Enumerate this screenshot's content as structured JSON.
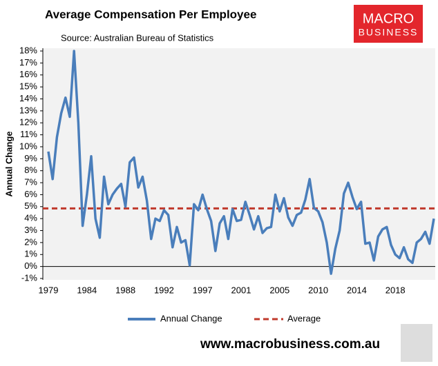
{
  "chart_data": {
    "type": "line",
    "title": "Average Compensation Per Employee",
    "subtitle": "Source: Australian Bureau of Statistics",
    "y_label": "Annual Change",
    "logo": {
      "line1": "MACRO",
      "line2": "BUSINESS"
    },
    "footer": "www.macrobusiness.com.au",
    "categories": [
      "1979",
      null,
      null,
      null,
      null,
      null,
      null,
      null,
      null,
      "1984",
      null,
      null,
      null,
      null,
      null,
      null,
      null,
      null,
      "1988",
      null,
      null,
      null,
      null,
      null,
      null,
      null,
      null,
      "1992",
      null,
      null,
      null,
      null,
      null,
      null,
      null,
      null,
      "1997",
      null,
      null,
      null,
      null,
      null,
      null,
      null,
      null,
      "2001",
      null,
      null,
      null,
      null,
      null,
      null,
      null,
      null,
      "2005",
      null,
      null,
      null,
      null,
      null,
      null,
      null,
      null,
      "2010",
      null,
      null,
      null,
      null,
      null,
      null,
      null,
      null,
      "2014",
      null,
      null,
      null,
      null,
      null,
      null,
      null,
      null,
      "2018",
      null,
      null,
      null,
      null,
      null,
      null,
      null,
      null,
      null
    ],
    "series": [
      {
        "name": "Annual Change",
        "color": "#4a7ebb",
        "values": [
          9.6,
          7.3,
          10.8,
          12.8,
          14.1,
          12.5,
          18,
          12,
          3.4,
          6,
          9.2,
          4,
          2.4,
          7.5,
          5.2,
          6,
          6.5,
          6.9,
          5,
          8.7,
          9.1,
          6.6,
          7.5,
          5.5,
          2.3,
          4,
          3.8,
          4.7,
          4.3,
          1.6,
          3.3,
          2,
          2.2,
          0.1,
          5.2,
          4.7,
          6,
          4.8,
          3.8,
          1.3,
          3.6,
          4.2,
          2.3,
          4.8,
          3.8,
          3.9,
          5.4,
          4.3,
          3.1,
          4.2,
          2.8,
          3.2,
          3.3,
          6,
          4.6,
          5.7,
          4.1,
          3.4,
          4.3,
          4.5,
          5.6,
          7.3,
          4.9,
          4.6,
          3.7,
          2,
          -0.6,
          1.5,
          3,
          6.1,
          7,
          5.8,
          4.8,
          5.4,
          1.9,
          2,
          0.5,
          2.5,
          3.1,
          3.3,
          1.8,
          1,
          0.7,
          1.6,
          0.6,
          0.3,
          2,
          2.3,
          2.9,
          1.9,
          4
        ]
      }
    ],
    "average": {
      "name": "Average",
      "value": 4.85,
      "color": "#c0392b"
    },
    "ylim": [
      -1,
      18
    ],
    "yticks": [
      {
        "value": -1,
        "label": "-1%"
      },
      {
        "value": 0,
        "label": "0%"
      },
      {
        "value": 1,
        "label": "1%"
      },
      {
        "value": 2,
        "label": "2%"
      },
      {
        "value": 3,
        "label": "3%"
      },
      {
        "value": 4,
        "label": "4%"
      },
      {
        "value": 5,
        "label": "5%"
      },
      {
        "value": 6,
        "label": "6%"
      },
      {
        "value": 7,
        "label": "7%"
      },
      {
        "value": 8,
        "label": "8%"
      },
      {
        "value": 9,
        "label": "9%"
      },
      {
        "value": 10,
        "label": "10%"
      },
      {
        "value": 11,
        "label": "11%"
      },
      {
        "value": 12,
        "label": "12%"
      },
      {
        "value": 13,
        "label": "13%"
      },
      {
        "value": 14,
        "label": "14%"
      },
      {
        "value": 15,
        "label": "15%"
      },
      {
        "value": 16,
        "label": "16%"
      },
      {
        "value": 17,
        "label": "17%"
      },
      {
        "value": 18,
        "label": "18%"
      }
    ]
  }
}
